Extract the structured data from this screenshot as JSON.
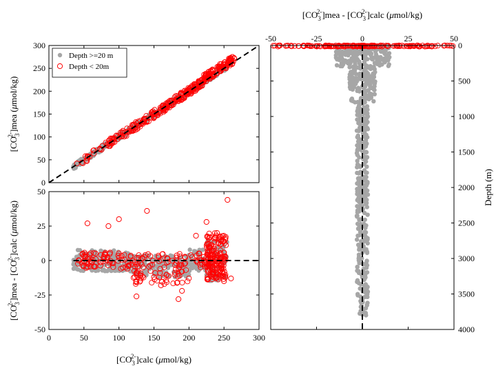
{
  "chart_data": [
    {
      "type": "scatter",
      "panel": "top-left",
      "xlim": [
        0,
        300
      ],
      "ylim": [
        0,
        300
      ],
      "xticks": [],
      "yticks": [
        "0",
        "50",
        "100",
        "150",
        "200",
        "250",
        "300"
      ],
      "ylabel": "[CO3 2-]mea (μmol/kg)",
      "ylabel_parts": {
        "pre": "[CO",
        "sub": "3",
        "sup": "2-",
        "post": "]mea (",
        "mu": "μ",
        "unit": "mol/kg)"
      },
      "legend": {
        "placement": "top-left",
        "entries": [
          {
            "label": "Depth >=20 m",
            "color": "#a6a6a6",
            "marker": "filled-circle"
          },
          {
            "label": "Depth < 20m",
            "color": "#ff0000",
            "marker": "open-circle"
          }
        ]
      },
      "reference_line": {
        "style": "dashed",
        "color": "#000000",
        "from": [
          0,
          0
        ],
        "to": [
          300,
          300
        ]
      },
      "series": [
        {
          "name": "Depth >=20 m",
          "color": "#a6a6a6",
          "x": [
            35,
            50,
            65,
            80,
            95,
            110,
            125,
            140,
            155,
            170,
            185,
            200,
            215,
            225,
            235,
            245,
            250
          ],
          "y": [
            36,
            48,
            63,
            79,
            94,
            108,
            124,
            139,
            153,
            169,
            184,
            198,
            212,
            222,
            232,
            242,
            248
          ]
        },
        {
          "name": "Depth < 20m",
          "color": "#ff0000",
          "x": [
            40,
            55,
            75,
            90,
            105,
            120,
            140,
            160,
            180,
            200,
            215,
            225,
            235,
            240,
            245,
            250,
            255,
            258,
            262
          ],
          "y": [
            42,
            58,
            72,
            95,
            102,
            125,
            135,
            162,
            178,
            205,
            210,
            230,
            236,
            245,
            250,
            258,
            262,
            270,
            275
          ]
        }
      ]
    },
    {
      "type": "scatter",
      "panel": "bottom-left",
      "xlim": [
        0,
        300
      ],
      "ylim": [
        -50,
        50
      ],
      "xticks": [
        "0",
        "50",
        "100",
        "150",
        "200",
        "250",
        "300"
      ],
      "yticks": [
        "-50",
        "-25",
        "0",
        "25",
        "50"
      ],
      "xlabel": "[CO3 2-]calc (μmol/kg)",
      "xlabel_parts": {
        "pre": "[CO",
        "sub": "3",
        "sup": "2-",
        "post": "]calc (",
        "mu": "μ",
        "unit": "mol/kg)"
      },
      "ylabel": "[CO3 2-]mea - [CO3 2-]calc (μmol/kg)",
      "ylabel_parts": {
        "pre": "[CO",
        "sub": "3",
        "sup": "2-",
        "mid": "]mea - [CO",
        "sub2": "3",
        "sup2": "2-",
        "post": "]calc (",
        "mu": "μ",
        "unit": "mol/kg)"
      },
      "reference_line": {
        "style": "dashed",
        "color": "#000000",
        "y": 0,
        "x_from": 35,
        "x_to": 300
      },
      "series": [
        {
          "name": "Depth >=20 m",
          "color": "#a6a6a6",
          "x": [
            40,
            60,
            80,
            100,
            120,
            140,
            160,
            180,
            200,
            215,
            230,
            240,
            245,
            250
          ],
          "y": [
            1,
            -3,
            2,
            -4,
            3,
            -8,
            -2,
            -12,
            4,
            -6,
            8,
            -14,
            3,
            -2
          ]
        },
        {
          "name": "Depth < 20m",
          "color": "#ff0000",
          "x": [
            55,
            85,
            100,
            125,
            140,
            150,
            160,
            185,
            190,
            210,
            225,
            235,
            240,
            245,
            250,
            255,
            260
          ],
          "y": [
            27,
            25,
            30,
            -26,
            36,
            -12,
            -18,
            -28,
            -22,
            18,
            28,
            -10,
            20,
            5,
            -15,
            44,
            -13
          ]
        }
      ]
    },
    {
      "type": "scatter",
      "panel": "right",
      "xlim": [
        -50,
        50
      ],
      "ylim": [
        0,
        4000
      ],
      "y_reversed": true,
      "xticks": [
        "-50",
        "-25",
        "0",
        "25",
        "50"
      ],
      "yticks": [
        "0",
        "500",
        "1000",
        "1500",
        "2000",
        "2500",
        "3000",
        "3500",
        "4000"
      ],
      "xlabel": "[CO3 2-]mea - [CO3 2-]calc (μmol/kg)",
      "xlabel_parts": {
        "pre": "[CO",
        "sub": "3",
        "sup": "2-",
        "mid": "]mea - [CO",
        "sub2": "3",
        "sup2": "2-",
        "post": "]calc (",
        "mu": "μ",
        "unit": "mol/kg)"
      },
      "ylabel": "Depth (m)",
      "reference_line": {
        "style": "dashed",
        "color": "#000000",
        "x": 0
      },
      "series": [
        {
          "name": "Depth >=20 m",
          "color": "#a6a6a6",
          "x": [
            -10,
            8,
            -6,
            5,
            -4,
            3,
            -3,
            2,
            -2,
            3,
            -3,
            2,
            -2,
            1,
            -1,
            2
          ],
          "y": [
            100,
            200,
            400,
            600,
            800,
            1000,
            1200,
            1500,
            1800,
            2100,
            2400,
            2700,
            3000,
            3300,
            3600,
            3800
          ]
        },
        {
          "name": "Depth < 20m",
          "color": "#ff0000",
          "x": [
            -45,
            -30,
            -20,
            -10,
            -5,
            0,
            5,
            10,
            20,
            30,
            45
          ],
          "y": [
            0,
            0,
            0,
            0,
            0,
            0,
            0,
            0,
            0,
            0,
            0
          ]
        }
      ]
    }
  ]
}
